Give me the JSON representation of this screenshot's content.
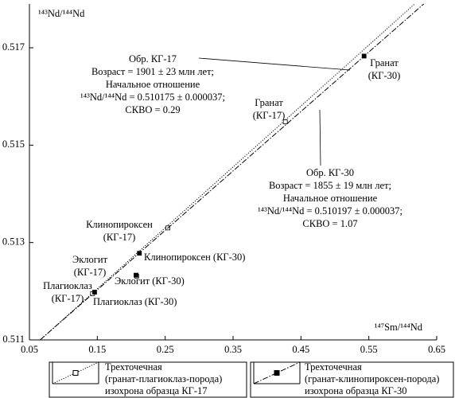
{
  "chart_data": {
    "type": "scatter",
    "y_title": "¹⁴³Nd/¹⁴⁴Nd",
    "x_title": "¹⁴⁷Sm/¹⁴⁴Nd",
    "xlim": [
      0.05,
      0.65
    ],
    "ylim": [
      0.511,
      0.5179
    ],
    "xticks": [
      0.05,
      0.15,
      0.25,
      0.35,
      0.45,
      0.55,
      0.65
    ],
    "yticks": [
      0.511,
      0.513,
      0.515,
      0.517
    ],
    "series": [
      {
        "name": [
          "Трехточечная",
          "(гранат-плагиоклаз-порода)",
          "изохрона образца КГ-17"
        ],
        "color": "#000000",
        "marker": "open",
        "line_style": "dotted",
        "x": [
          0.143,
          0.208,
          0.254,
          0.427
        ],
        "y": [
          0.51195,
          0.51231,
          0.5133,
          0.51548
        ],
        "point_labels": [
          [
            "Плагиоклаз",
            "(КГ-17)"
          ],
          [
            "Эклогит",
            "(КГ-17)"
          ],
          [
            "Клинопироксен",
            "(КГ-17)"
          ],
          [
            "Гранат",
            "(КГ-17)"
          ]
        ],
        "isochron": {
          "x": [
            0.066,
            0.6175
          ],
          "y": [
            0.511,
            0.5179
          ]
        },
        "annotation": [
          "Обр. КГ-17",
          "Возраст = 1901 ± 23 млн лет;",
          "Начальное отношение",
          "¹⁴³Nd/¹⁴⁴Nd = 0.510175 ± 0.000037;",
          "СКВО = 0.29"
        ]
      },
      {
        "name": [
          "Трехточечная",
          "(гранат-клинопироксен-порода)",
          "изохрона образца КГ-30"
        ],
        "color": "#000000",
        "marker": "filled",
        "line_style": "dashdot",
        "x": [
          0.146,
          0.207,
          0.212,
          0.543
        ],
        "y": [
          0.51198,
          0.51233,
          0.51278,
          0.51683
        ],
        "point_labels": [
          [
            "Плагиоклаз (КГ-30)"
          ],
          [
            "Эклогит (КГ-30)"
          ],
          [
            "Клинопироксен (КГ-30)"
          ],
          [
            "Гранат",
            "(КГ-30)"
          ]
        ],
        "isochron": {
          "x": [
            0.0658,
            0.6309
          ],
          "y": [
            0.511,
            0.5179
          ]
        },
        "annotation": [
          "Обр. КГ-30",
          "Возраст = 1855 ± 19 млн лет;",
          "Начальное отношение",
          "¹⁴³Nd/¹⁴⁴Nd = 0.510197 ± 0.000037;",
          "СКВО = 1.07"
        ]
      }
    ]
  }
}
